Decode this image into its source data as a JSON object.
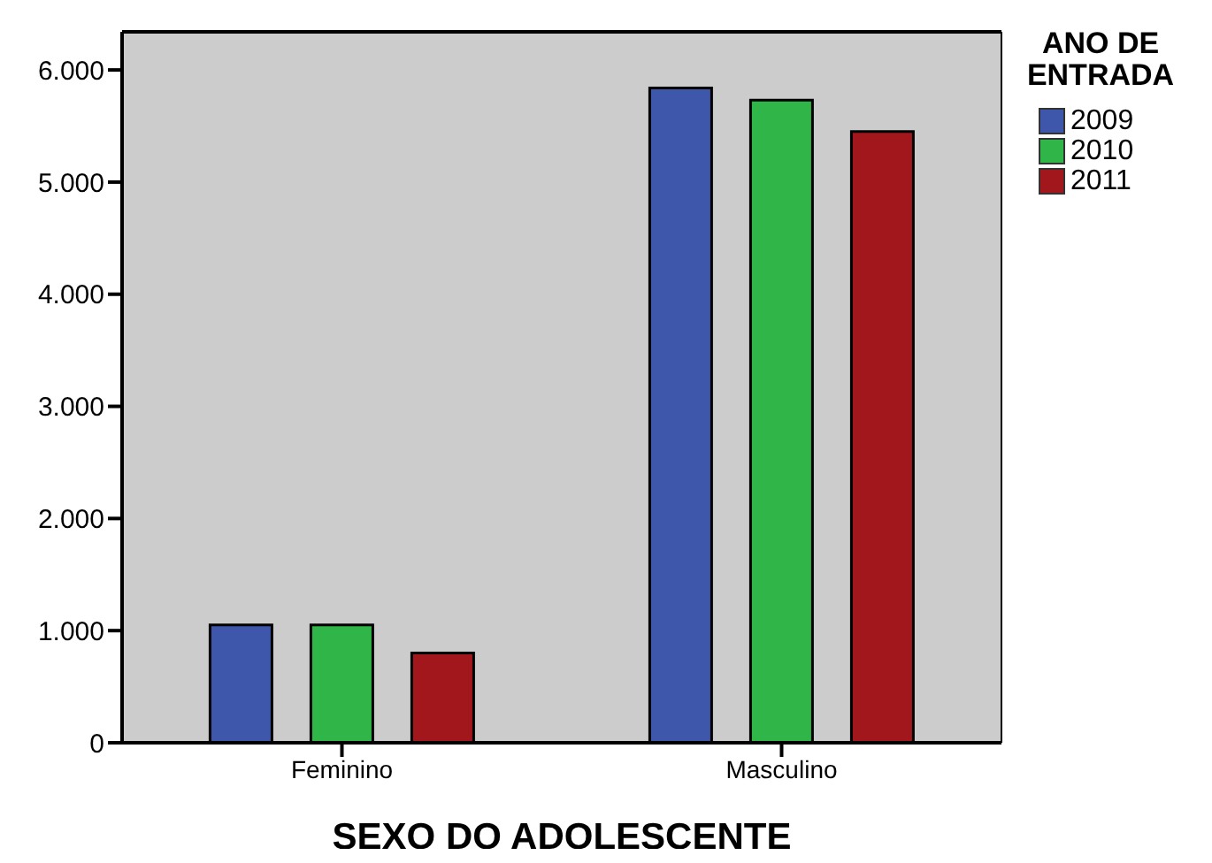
{
  "chart_data": {
    "type": "bar",
    "xlabel": "SEXO DO ADOLESCENTE",
    "legend_title": "ANO DE ENTRADA",
    "categories": [
      "Feminino",
      "Masculino"
    ],
    "series": [
      {
        "name": "2009",
        "color": "#3f57ab",
        "values": [
          1050,
          5840
        ]
      },
      {
        "name": "2010",
        "color": "#30b549",
        "values": [
          1050,
          5730
        ]
      },
      {
        "name": "2011",
        "color": "#a2171b",
        "values": [
          800,
          5450
        ]
      }
    ],
    "ylim": [
      0,
      6340
    ],
    "yticks": [
      0,
      {
        "value": 1000,
        "label": "1.000"
      },
      {
        "value": 2000,
        "label": "2.000"
      },
      {
        "value": 3000,
        "label": "3.000"
      },
      {
        "value": 4000,
        "label": "4.000"
      },
      {
        "value": 5000,
        "label": "5.000"
      },
      {
        "value": 6000,
        "label": "6.000"
      }
    ],
    "grid": false,
    "legend": "top right"
  }
}
